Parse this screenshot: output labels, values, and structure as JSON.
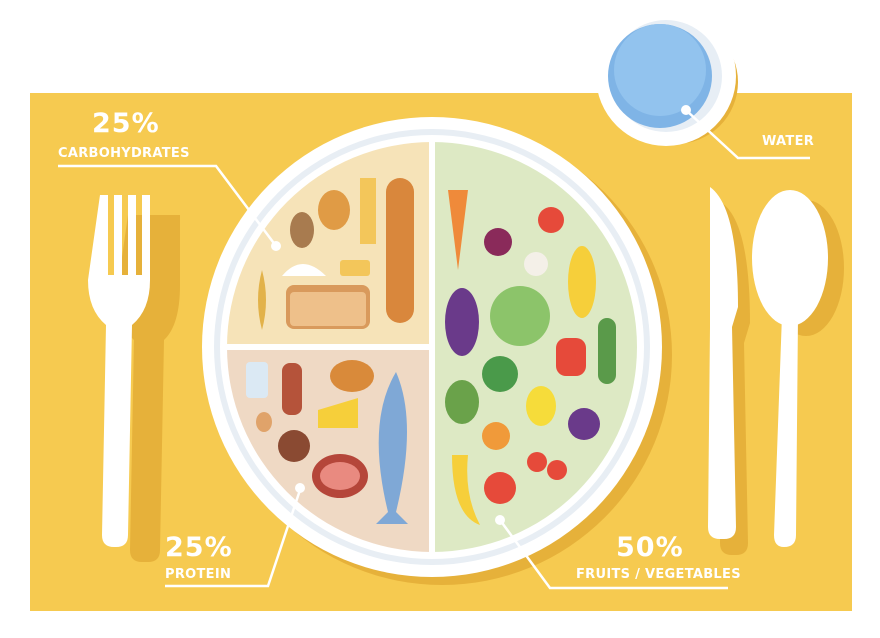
{
  "labels": {
    "carbs": {
      "percent": "25%",
      "name": "CARBOHYDRATES"
    },
    "protein": {
      "percent": "25%",
      "name": "PROTEIN"
    },
    "fruits_vegetables": {
      "percent": "50%",
      "name": "FRUITS / VEGETABLES"
    },
    "water": {
      "name": "WATER"
    }
  },
  "colors": {
    "placemat": "#f6ca50",
    "shadow": "#e6b13a",
    "carbs_section": "#f6e3b8",
    "protein_section": "#efd9c4",
    "veg_section": "#dde9c4",
    "water": "#7fb4e6"
  }
}
